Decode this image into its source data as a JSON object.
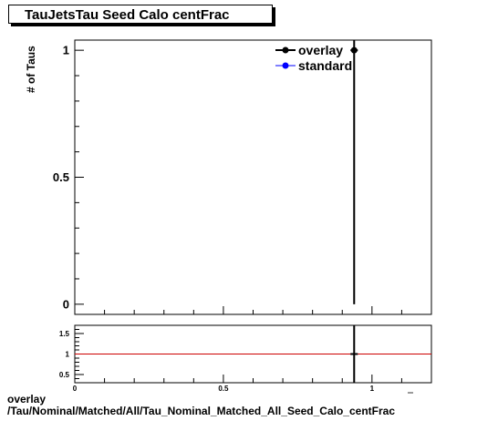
{
  "title": "TauJetsTau Seed Calo centFrac",
  "chart_data": [
    {
      "type": "scatter",
      "ylabel": "# of Taus",
      "xlim": [
        0,
        1.2
      ],
      "ylim": [
        -0.04,
        1.04
      ],
      "y_ticks": [
        0,
        0.5,
        1
      ],
      "x_ticks": [
        0,
        0.5,
        1
      ],
      "grid": false,
      "legend_position": "top-right",
      "series": [
        {
          "name": "overlay",
          "color": "#000000",
          "points": [
            {
              "x": 0.94,
              "y": 1,
              "ylow": 0,
              "yhigh": 2
            }
          ]
        },
        {
          "name": "standard",
          "color": "#0000ff",
          "points": []
        }
      ]
    },
    {
      "type": "line",
      "xlim": [
        0,
        1.2
      ],
      "ylim": [
        0.3,
        1.7
      ],
      "y_ticks": [
        0.5,
        1,
        1.5
      ],
      "x_ticks": [
        0,
        0.5,
        1
      ],
      "reference_line": {
        "y": 1,
        "color": "#cc0000"
      },
      "series": [
        {
          "color": "#000000",
          "points": [
            {
              "x": 0.94,
              "y": 1,
              "ylow": 0.3,
              "yhigh": 1.7
            }
          ]
        }
      ]
    }
  ],
  "footer": {
    "line1": "overlay",
    "line2": "/Tau/Nominal/Matched/All/Tau_Nominal_Matched_All_Seed_Calo_centFrac"
  }
}
